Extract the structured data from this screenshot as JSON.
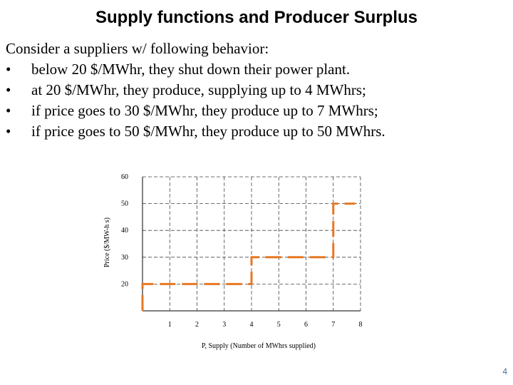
{
  "slide": {
    "title": "Supply functions and Producer Surplus",
    "intro": "Consider a suppliers w/ following behavior:",
    "bullets": [
      "below 20 $/MWhr, they shut down their power plant.",
      "at 20 $/MWhr, they produce, supplying up to 4 MWhrs;",
      "if price goes to 30 $/MWhr, they produce up to 7 MWhrs;",
      "if price goes to 50 $/MWhr, they produce up to 50 MWhrs."
    ],
    "bullet_symbol": "•",
    "page_number": "4"
  },
  "chart_data": {
    "type": "line",
    "xlabel": "P, Supply (Number of MWhrs supplied)",
    "ylabel": "Price ($/MW-h s)",
    "x_ticks": [
      "1",
      "2",
      "3",
      "4",
      "5",
      "6",
      "7",
      "8"
    ],
    "y_ticks": [
      "20",
      "30",
      "40",
      "50",
      "60"
    ],
    "xlim": [
      0,
      8
    ],
    "ylim": [
      10,
      60
    ],
    "grid": true,
    "grid_style": "dashed",
    "series": [
      {
        "color": "#e87722",
        "line_style": "dashed",
        "x": [
          0,
          0,
          4,
          4,
          7,
          7,
          7.8
        ],
        "y": [
          10,
          20,
          20,
          30,
          30,
          50,
          50
        ]
      }
    ]
  }
}
